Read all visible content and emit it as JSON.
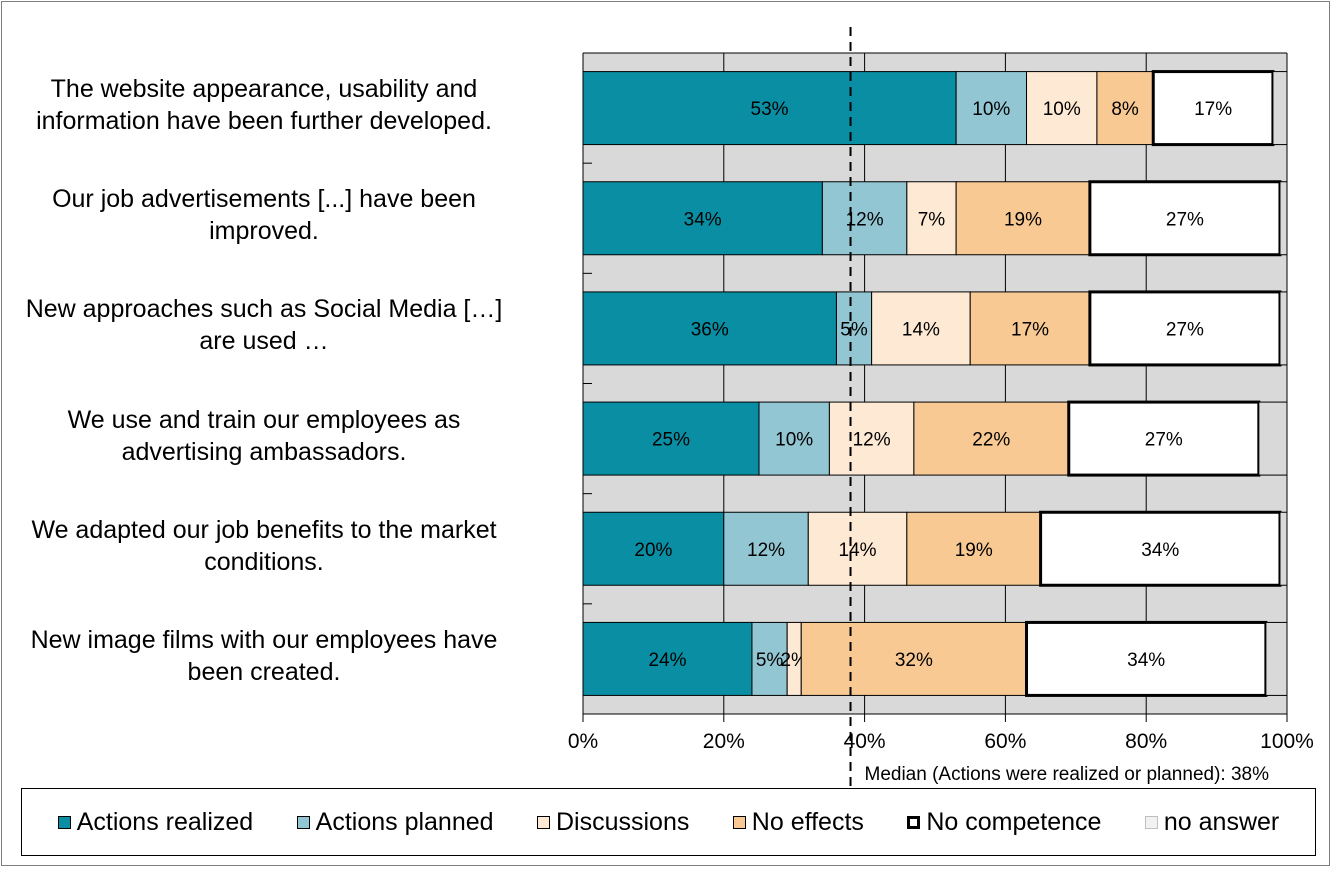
{
  "chart_data": {
    "type": "bar",
    "orientation": "horizontal",
    "stacked": true,
    "categories": [
      [
        "The website appearance, usability and",
        "information have been further developed."
      ],
      [
        "Our job advertisements [...] have been",
        "improved."
      ],
      [
        "New approaches such as Social Media […]",
        "are used …"
      ],
      [
        "We use and train our employees as",
        "advertising ambassadors."
      ],
      [
        "We adapted our job benefits to the market",
        "conditions."
      ],
      [
        "New image films with our employees have",
        "been created."
      ]
    ],
    "series": [
      {
        "name": "Actions realized",
        "color": "#0a8ea3",
        "values": [
          53,
          34,
          36,
          25,
          20,
          24
        ],
        "labels": [
          "53%",
          "34%",
          "36%",
          "25%",
          "20%",
          "24%"
        ]
      },
      {
        "name": "Actions planned",
        "color": "#93c6d3",
        "values": [
          10,
          12,
          5,
          10,
          12,
          5
        ],
        "labels": [
          "10%",
          "12%",
          "5%",
          "10%",
          "12%",
          "5%"
        ]
      },
      {
        "name": "Discussions",
        "color": "#fde9d4",
        "values": [
          10,
          7,
          14,
          12,
          14,
          2
        ],
        "labels": [
          "10%",
          "7%",
          "14%",
          "12%",
          "14%",
          "2%"
        ]
      },
      {
        "name": "No effects",
        "color": "#f9c993",
        "values": [
          8,
          19,
          17,
          22,
          19,
          32
        ],
        "labels": [
          "8%",
          "19%",
          "17%",
          "22%",
          "19%",
          "32%"
        ]
      },
      {
        "name": "No competence",
        "color": "#ffffff",
        "values": [
          17,
          27,
          27,
          27,
          34,
          34
        ],
        "labels": [
          "17%",
          "27%",
          "27%",
          "27%",
          "34%",
          "34%"
        ]
      },
      {
        "name": "no answer",
        "color": "#d9d9d9",
        "values": [
          2,
          1,
          1,
          4,
          1,
          3
        ],
        "labels": [
          "",
          "",
          "",
          "",
          "",
          ""
        ]
      }
    ],
    "xaxis": {
      "min": 0,
      "max": 100,
      "ticks": [
        0,
        20,
        40,
        60,
        80,
        100
      ],
      "tick_labels": [
        "0%",
        "20%",
        "40%",
        "60%",
        "80%",
        "100%"
      ]
    },
    "median": {
      "value": 38,
      "label": "Median (Actions were realized or planned): 38%"
    },
    "grid": true,
    "legend_position": "bottom",
    "background_color": "#d9d9d9"
  }
}
